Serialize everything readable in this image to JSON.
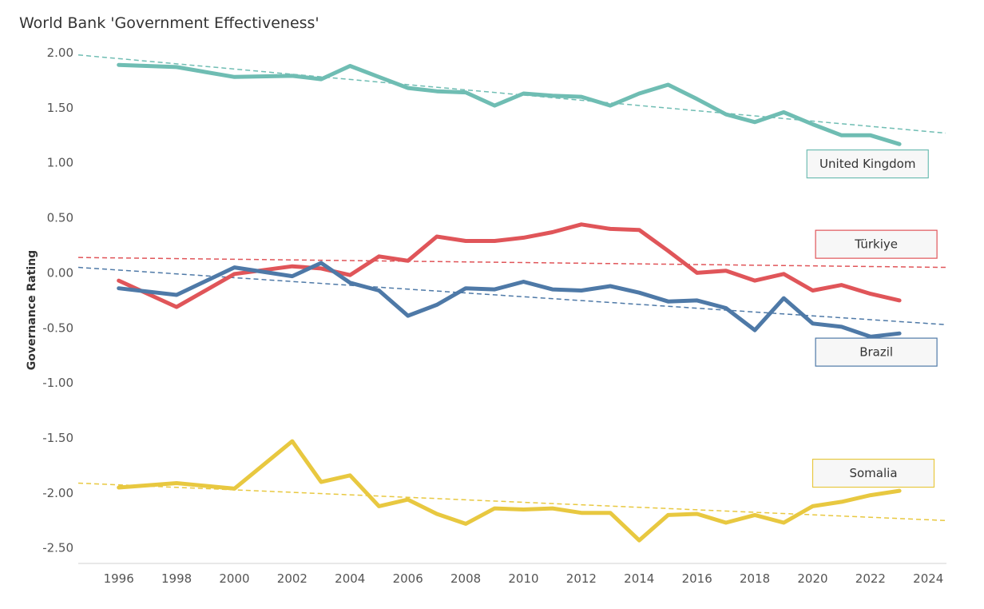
{
  "chart_data": {
    "type": "line",
    "title": "World Bank 'Government Effectiveness'",
    "xlabel": "",
    "ylabel": "Governance Rating",
    "xlim": [
      1994.6,
      2024.6
    ],
    "ylim": [
      -2.64,
      2.08
    ],
    "x_ticks": [
      1996,
      1998,
      2000,
      2002,
      2004,
      2006,
      2008,
      2010,
      2012,
      2014,
      2016,
      2018,
      2020,
      2022,
      2024
    ],
    "y_ticks": [
      2.0,
      1.5,
      1.0,
      0.5,
      0.0,
      -0.5,
      -1.0,
      -1.5,
      -2.0,
      -2.5
    ],
    "y_tick_labels": [
      "2.00",
      "1.50",
      "1.00",
      "0.50",
      "0.00",
      "-0.50",
      "-1.00",
      "-1.50",
      "-2.00",
      "-2.50"
    ],
    "grid": false,
    "legend": "labels next to lines",
    "x": [
      1996,
      1998,
      2000,
      2002,
      2003,
      2004,
      2005,
      2006,
      2007,
      2008,
      2009,
      2010,
      2011,
      2012,
      2013,
      2014,
      2015,
      2016,
      2017,
      2018,
      2019,
      2020,
      2021,
      2022,
      2023
    ],
    "series": [
      {
        "name": "United Kingdom",
        "color": "#6fbdb3",
        "values": [
          1.89,
          1.87,
          1.78,
          1.79,
          1.76,
          1.88,
          1.78,
          1.68,
          1.65,
          1.64,
          1.52,
          1.63,
          1.61,
          1.6,
          1.52,
          1.63,
          1.71,
          1.58,
          1.44,
          1.37,
          1.46,
          1.35,
          1.25,
          1.25,
          1.17
        ],
        "trend": [
          1.98,
          1.27
        ],
        "label_box_at": [
          2021.9,
          0.99
        ]
      },
      {
        "name": "Türkiye",
        "color": "#e05559",
        "values": [
          -0.07,
          -0.31,
          -0.01,
          0.06,
          0.04,
          -0.02,
          0.15,
          0.11,
          0.33,
          0.29,
          0.29,
          0.32,
          0.37,
          0.44,
          0.4,
          0.39,
          0.2,
          0.0,
          0.02,
          -0.07,
          -0.01,
          -0.16,
          -0.11,
          -0.19,
          -0.25
        ],
        "trend": [
          0.14,
          0.05
        ],
        "label_box_at": [
          2022.2,
          0.26
        ]
      },
      {
        "name": "Brazil",
        "color": "#4e79a7",
        "values": [
          -0.14,
          -0.2,
          0.05,
          -0.03,
          0.09,
          -0.09,
          -0.16,
          -0.39,
          -0.29,
          -0.14,
          -0.15,
          -0.08,
          -0.15,
          -0.16,
          -0.12,
          -0.18,
          -0.26,
          -0.25,
          -0.32,
          -0.52,
          -0.23,
          -0.46,
          -0.49,
          -0.58,
          -0.55
        ],
        "trend": [
          0.05,
          -0.47
        ],
        "label_box_at": [
          2022.2,
          -0.72
        ]
      },
      {
        "name": "Somalia",
        "color": "#e8c840",
        "values": [
          -1.95,
          -1.91,
          -1.96,
          -1.53,
          -1.9,
          -1.84,
          -2.12,
          -2.06,
          -2.19,
          -2.28,
          -2.14,
          -2.15,
          -2.14,
          -2.18,
          -2.18,
          -2.43,
          -2.2,
          -2.19,
          -2.27,
          -2.2,
          -2.27,
          -2.12,
          -2.08,
          -2.02,
          -1.98
        ],
        "trend": [
          -1.91,
          -2.25
        ],
        "label_box_at": [
          2022.1,
          -1.82
        ]
      }
    ]
  }
}
